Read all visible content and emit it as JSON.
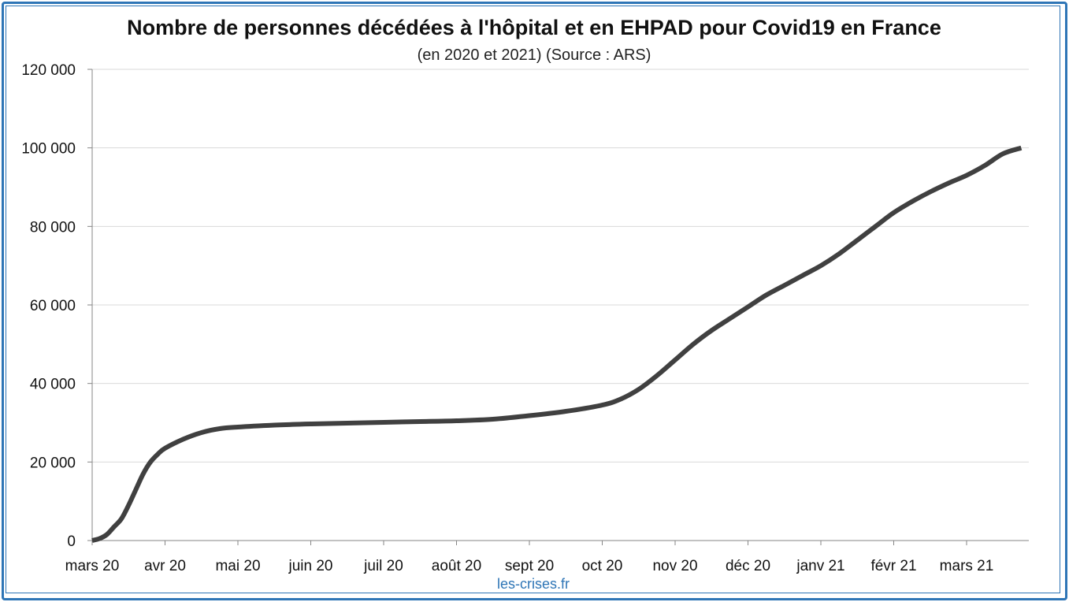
{
  "chart_data": {
    "type": "line",
    "title": "Nombre de personnes décédées à l'hôpital et en EHPAD pour Covid19 en France",
    "subtitle": "(en 2020 et 2021) (Source : ARS)",
    "xlabel": "",
    "ylabel": "",
    "ylim": [
      0,
      120000
    ],
    "grid": true,
    "x_tick_labels": [
      "mars 20",
      "avr 20",
      "mai 20",
      "juin 20",
      "juil 20",
      "août 20",
      "sept 20",
      "oct 20",
      "nov 20",
      "déc 20",
      "janv 21",
      "févr 21",
      "mars 21"
    ],
    "y_tick_labels": [
      "0",
      "20 000",
      "40 000",
      "60 000",
      "80 000",
      "100 000",
      "120 000"
    ],
    "y_ticks": [
      0,
      20000,
      40000,
      60000,
      80000,
      100000,
      120000
    ],
    "series": [
      {
        "color": "#404040",
        "x": [
          0,
          0.1,
          0.2,
          0.3,
          0.4,
          0.5,
          0.6,
          0.7,
          0.8,
          0.9,
          1.0,
          1.25,
          1.5,
          1.75,
          2.0,
          2.5,
          3.0,
          3.5,
          4.0,
          4.5,
          5.0,
          5.5,
          6.0,
          6.5,
          7.0,
          7.25,
          7.5,
          7.75,
          8.0,
          8.25,
          8.5,
          8.75,
          9.0,
          9.25,
          9.5,
          9.75,
          10.0,
          10.25,
          10.5,
          10.75,
          11.0,
          11.25,
          11.5,
          11.75,
          12.0,
          12.25,
          12.5,
          12.75
        ],
        "y": [
          0,
          500,
          1500,
          3500,
          5500,
          9000,
          13000,
          17000,
          20000,
          22000,
          23500,
          25800,
          27500,
          28500,
          28900,
          29400,
          29700,
          29900,
          30100,
          30300,
          30500,
          30900,
          31800,
          32900,
          34500,
          36000,
          38500,
          42000,
          46000,
          50000,
          53500,
          56500,
          59500,
          62500,
          65000,
          67500,
          70000,
          73000,
          76500,
          80000,
          83500,
          86300,
          88800,
          91000,
          93000,
          95500,
          98500,
          100000
        ]
      }
    ],
    "source_label": "les-crises.fr"
  }
}
